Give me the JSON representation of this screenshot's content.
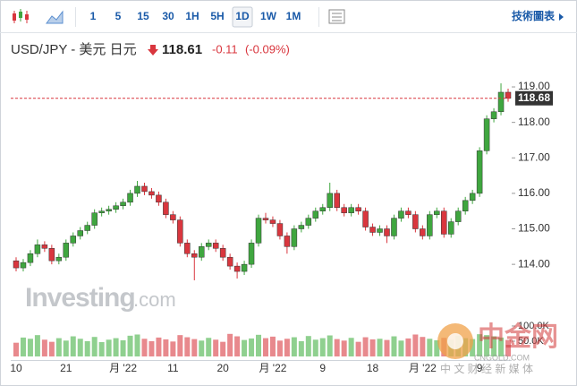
{
  "toolbar": {
    "intervals": [
      "1",
      "5",
      "15",
      "30",
      "1H",
      "5H",
      "1D",
      "1W",
      "1M"
    ],
    "selected": "1D",
    "technical": "技術圖表"
  },
  "header": {
    "symbol": "USD/JPY - 美元 日元",
    "price": 118.61,
    "change": -0.11,
    "change_pct": "(-0.09%)"
  },
  "watermarks": {
    "brand": "Investing",
    "brand_suffix": ".com",
    "cngold": "中金网",
    "cngold_url": "CNGOLD.COM",
    "cngold_tagline": "中 文 财 经 新 媒 体"
  },
  "chart_data": {
    "type": "candlestick",
    "price_label": "118.68",
    "up_color": "#3fa63f",
    "down_color": "#d9363e",
    "volume_up_color": "#8fd08f",
    "volume_down_color": "#e8898d",
    "ylim": [
      113.12,
      119.43
    ],
    "yticks": [
      {
        "value": 114,
        "label": "114.00"
      },
      {
        "value": 115,
        "label": "115.00"
      },
      {
        "value": 116,
        "label": "116.00"
      },
      {
        "value": 117,
        "label": "117.00"
      },
      {
        "value": 118,
        "label": "118.00"
      },
      {
        "value": 119,
        "label": "119.00"
      }
    ],
    "volume_lim": [
      0,
      141000
    ],
    "volume_ticks": [
      {
        "value": 50000,
        "label": "50.0K"
      },
      {
        "value": 100000,
        "label": "100.0K"
      }
    ],
    "categories": [
      "10",
      null,
      null,
      null,
      null,
      null,
      null,
      "21",
      null,
      null,
      null,
      null,
      null,
      null,
      null,
      "月 '22",
      null,
      null,
      null,
      null,
      null,
      null,
      "11",
      null,
      null,
      null,
      null,
      null,
      null,
      "20",
      null,
      null,
      null,
      null,
      null,
      null,
      "月 '22",
      null,
      null,
      null,
      null,
      null,
      null,
      "9",
      null,
      null,
      null,
      null,
      null,
      null,
      "18",
      null,
      null,
      null,
      null,
      null,
      null,
      "月 '22",
      null,
      null,
      null,
      null,
      null,
      null,
      null,
      "9",
      null,
      null,
      null,
      null
    ],
    "open": [
      114.1,
      113.9,
      114.05,
      114.3,
      114.55,
      114.45,
      114.1,
      114.2,
      114.6,
      114.8,
      114.95,
      115.1,
      115.45,
      115.5,
      115.55,
      115.65,
      115.75,
      116.0,
      116.2,
      116.05,
      115.95,
      115.75,
      115.4,
      115.25,
      114.6,
      114.3,
      114.2,
      114.5,
      114.6,
      114.45,
      114.2,
      113.95,
      113.8,
      114.0,
      114.6,
      115.3,
      115.25,
      115.15,
      114.8,
      114.5,
      115.0,
      115.1,
      115.3,
      115.5,
      115.6,
      116.0,
      115.6,
      115.45,
      115.6,
      115.5,
      115.05,
      114.9,
      115.0,
      114.8,
      115.3,
      115.5,
      115.4,
      115.0,
      114.8,
      115.4,
      115.5,
      114.85,
      115.2,
      115.5,
      115.8,
      116.0,
      117.2,
      118.1,
      118.3,
      118.85
    ],
    "high": [
      114.2,
      114.15,
      114.4,
      114.7,
      114.65,
      114.55,
      114.3,
      114.7,
      114.9,
      115.05,
      115.2,
      115.55,
      115.6,
      115.65,
      115.75,
      115.85,
      116.1,
      116.35,
      116.3,
      116.15,
      116.05,
      115.85,
      115.5,
      115.35,
      114.7,
      114.4,
      114.6,
      114.7,
      114.7,
      114.55,
      114.3,
      114.05,
      114.1,
      114.7,
      115.4,
      115.45,
      115.35,
      115.25,
      114.9,
      115.1,
      115.2,
      115.4,
      115.6,
      115.7,
      116.3,
      116.1,
      115.7,
      115.7,
      115.7,
      115.6,
      115.15,
      115.1,
      115.1,
      115.4,
      115.6,
      115.6,
      115.5,
      115.1,
      115.5,
      115.6,
      115.6,
      115.3,
      115.6,
      115.9,
      116.1,
      117.3,
      118.2,
      118.4,
      119.1,
      118.95
    ],
    "low": [
      113.8,
      113.8,
      113.95,
      114.2,
      114.35,
      114.0,
      114.0,
      114.1,
      114.5,
      114.7,
      114.85,
      115.0,
      115.35,
      115.4,
      115.45,
      115.55,
      115.65,
      115.9,
      115.95,
      115.85,
      115.65,
      115.3,
      115.15,
      114.5,
      114.2,
      113.55,
      114.1,
      114.4,
      114.35,
      114.1,
      113.85,
      113.6,
      113.7,
      113.9,
      114.5,
      115.15,
      115.05,
      114.7,
      114.3,
      114.4,
      114.9,
      115.0,
      115.2,
      115.4,
      115.5,
      115.5,
      115.35,
      115.35,
      115.4,
      114.95,
      114.8,
      114.8,
      114.6,
      114.7,
      115.2,
      115.3,
      114.9,
      114.7,
      114.7,
      115.3,
      114.75,
      114.75,
      115.1,
      115.4,
      115.7,
      115.9,
      117.1,
      118.0,
      118.2,
      118.58
    ],
    "close": [
      113.9,
      114.05,
      114.3,
      114.55,
      114.45,
      114.1,
      114.2,
      114.6,
      114.8,
      114.95,
      115.1,
      115.45,
      115.5,
      115.55,
      115.65,
      115.75,
      116.0,
      116.2,
      116.05,
      115.95,
      115.75,
      115.4,
      115.25,
      114.6,
      114.3,
      114.2,
      114.5,
      114.6,
      114.45,
      114.2,
      113.95,
      113.8,
      114.0,
      114.6,
      115.3,
      115.25,
      115.15,
      114.8,
      114.5,
      115.0,
      115.1,
      115.3,
      115.5,
      115.6,
      116.0,
      115.6,
      115.45,
      115.6,
      115.5,
      115.05,
      114.9,
      115.0,
      114.8,
      115.3,
      115.5,
      115.4,
      115.0,
      114.8,
      115.4,
      115.5,
      114.85,
      115.2,
      115.5,
      115.8,
      116.0,
      117.2,
      118.1,
      118.3,
      118.85,
      118.68
    ],
    "volume": [
      45000,
      62000,
      58000,
      70000,
      55000,
      48000,
      60000,
      52000,
      66000,
      58000,
      50000,
      64000,
      47000,
      55000,
      60000,
      53000,
      68000,
      72000,
      58000,
      50000,
      62000,
      56000,
      49000,
      70000,
      63000,
      57000,
      52000,
      61000,
      55000,
      48000,
      74000,
      66000,
      54000,
      59000,
      71000,
      60000,
      65000,
      52000,
      58000,
      63000,
      50000,
      67000,
      55000,
      60000,
      69000,
      57000,
      52000,
      61000,
      48000,
      63000,
      56000,
      58000,
      54000,
      66000,
      52000,
      59000,
      72000,
      64000,
      58000,
      53000,
      61000,
      55000,
      68000,
      60000,
      57000,
      73000,
      70000,
      66000,
      62000,
      54000
    ]
  }
}
